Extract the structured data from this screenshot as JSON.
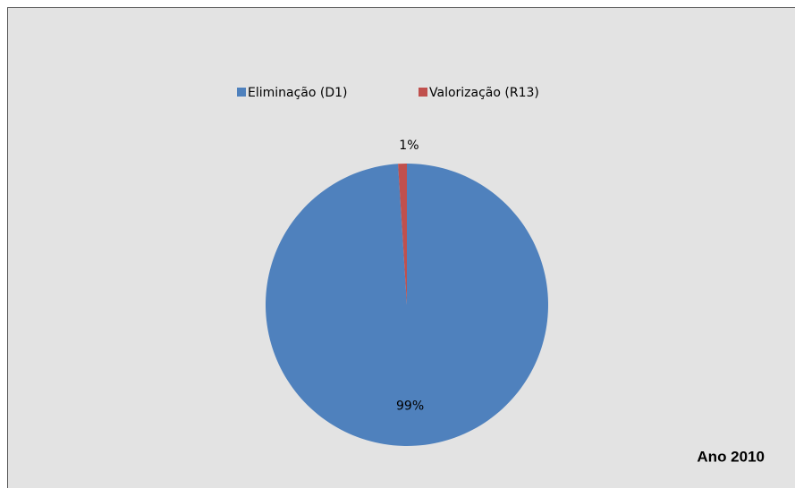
{
  "chart_data": {
    "type": "pie",
    "categories": [
      "Eliminação (D1)",
      "Valorização (R13)"
    ],
    "values": [
      99,
      1
    ],
    "value_labels": [
      "99%",
      "1%"
    ],
    "colors": [
      "#4f81bd",
      "#c0504d"
    ],
    "legend": "top",
    "annotation": "Ano 2010"
  }
}
